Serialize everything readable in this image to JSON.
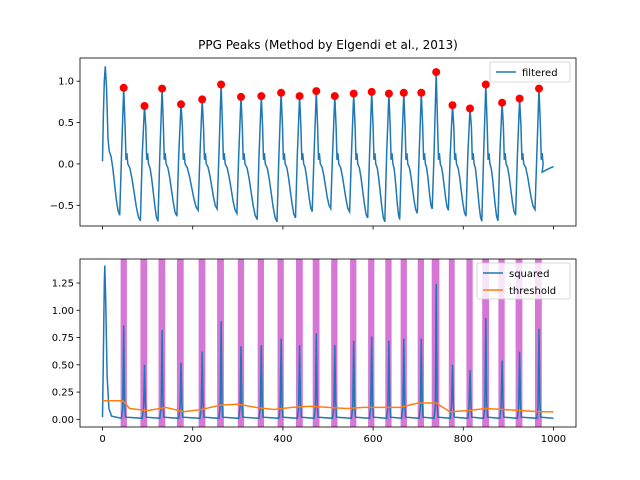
{
  "chart_data": [
    {
      "type": "line",
      "title": "PPG Peaks (Method by Elgendi et al., 2013)",
      "xlabel": "",
      "ylabel": "",
      "xlim": [
        -50,
        1050
      ],
      "ylim": [
        -0.75,
        1.28
      ],
      "yticks": [
        -0.5,
        0.0,
        0.5,
        1.0
      ],
      "ytick_labels": [
        "−0.5",
        "0.0",
        "0.5",
        "1.0"
      ],
      "legend": {
        "placement": "top-right",
        "entries": [
          "filtered"
        ]
      },
      "series": [
        {
          "name": "filtered",
          "color": "#1f77b4",
          "beats": [
            {
              "peak": 47,
              "amp": 0.92
            },
            {
              "peak": 93,
              "amp": 0.7
            },
            {
              "peak": 132,
              "amp": 0.91
            },
            {
              "peak": 174,
              "amp": 0.72
            },
            {
              "peak": 221,
              "amp": 0.78
            },
            {
              "peak": 263,
              "amp": 0.96
            },
            {
              "peak": 307,
              "amp": 0.81
            },
            {
              "peak": 352,
              "amp": 0.82
            },
            {
              "peak": 396,
              "amp": 0.86
            },
            {
              "peak": 437,
              "amp": 0.82
            },
            {
              "peak": 474,
              "amp": 0.88
            },
            {
              "peak": 515,
              "amp": 0.82
            },
            {
              "peak": 557,
              "amp": 0.85
            },
            {
              "peak": 597,
              "amp": 0.87
            },
            {
              "peak": 635,
              "amp": 0.85
            },
            {
              "peak": 668,
              "amp": 0.86
            },
            {
              "peak": 707,
              "amp": 0.86
            },
            {
              "peak": 740,
              "amp": 1.11
            },
            {
              "peak": 776,
              "amp": 0.71
            },
            {
              "peak": 815,
              "amp": 0.67
            },
            {
              "peak": 850,
              "amp": 0.96
            },
            {
              "peak": 886,
              "amp": 0.74
            },
            {
              "peak": 925,
              "amp": 0.79
            },
            {
              "peak": 968,
              "amp": 0.91
            }
          ]
        }
      ],
      "peaks": {
        "color": "#ff0000"
      }
    },
    {
      "type": "line",
      "title": "",
      "xlabel": "",
      "ylabel": "",
      "xlim": [
        -50,
        1050
      ],
      "ylim": [
        -0.07,
        1.47
      ],
      "xticks": [
        0,
        200,
        400,
        600,
        800,
        1000
      ],
      "xtick_labels": [
        "0",
        "200",
        "400",
        "600",
        "800",
        "1000"
      ],
      "yticks": [
        0.0,
        0.25,
        0.5,
        0.75,
        1.0,
        1.25
      ],
      "ytick_labels": [
        "0.00",
        "0.25",
        "0.50",
        "0.75",
        "1.00",
        "1.25"
      ],
      "legend": {
        "placement": "top-right",
        "entries": [
          "squared",
          "threshold"
        ]
      },
      "series": [
        {
          "name": "squared",
          "color": "#1f77b4",
          "peaks": [
            {
              "x": 47,
              "y": 0.86
            },
            {
              "x": 93,
              "y": 0.5
            },
            {
              "x": 132,
              "y": 0.82
            },
            {
              "x": 174,
              "y": 0.52
            },
            {
              "x": 221,
              "y": 0.62
            },
            {
              "x": 263,
              "y": 0.9
            },
            {
              "x": 307,
              "y": 0.67
            },
            {
              "x": 352,
              "y": 0.68
            },
            {
              "x": 396,
              "y": 0.74
            },
            {
              "x": 437,
              "y": 0.68
            },
            {
              "x": 474,
              "y": 0.79
            },
            {
              "x": 515,
              "y": 0.68
            },
            {
              "x": 557,
              "y": 0.72
            },
            {
              "x": 597,
              "y": 0.76
            },
            {
              "x": 635,
              "y": 0.72
            },
            {
              "x": 668,
              "y": 0.74
            },
            {
              "x": 707,
              "y": 0.74
            },
            {
              "x": 740,
              "y": 1.24
            },
            {
              "x": 776,
              "y": 0.5
            },
            {
              "x": 815,
              "y": 0.45
            },
            {
              "x": 850,
              "y": 0.93
            },
            {
              "x": 886,
              "y": 0.54
            },
            {
              "x": 925,
              "y": 0.62
            },
            {
              "x": 968,
              "y": 0.83
            }
          ]
        },
        {
          "name": "threshold",
          "color": "#ff7f0e",
          "points": [
            {
              "x": 0,
              "y": 0.17
            },
            {
              "x": 45,
              "y": 0.17
            },
            {
              "x": 60,
              "y": 0.1
            },
            {
              "x": 100,
              "y": 0.08
            },
            {
              "x": 140,
              "y": 0.11
            },
            {
              "x": 180,
              "y": 0.07
            },
            {
              "x": 220,
              "y": 0.09
            },
            {
              "x": 260,
              "y": 0.13
            },
            {
              "x": 300,
              "y": 0.14
            },
            {
              "x": 340,
              "y": 0.11
            },
            {
              "x": 380,
              "y": 0.09
            },
            {
              "x": 420,
              "y": 0.11
            },
            {
              "x": 460,
              "y": 0.12
            },
            {
              "x": 500,
              "y": 0.11
            },
            {
              "x": 540,
              "y": 0.1
            },
            {
              "x": 580,
              "y": 0.11
            },
            {
              "x": 620,
              "y": 0.11
            },
            {
              "x": 660,
              "y": 0.11
            },
            {
              "x": 700,
              "y": 0.15
            },
            {
              "x": 740,
              "y": 0.15
            },
            {
              "x": 770,
              "y": 0.07
            },
            {
              "x": 810,
              "y": 0.08
            },
            {
              "x": 850,
              "y": 0.1
            },
            {
              "x": 890,
              "y": 0.09
            },
            {
              "x": 930,
              "y": 0.08
            },
            {
              "x": 970,
              "y": 0.07
            },
            {
              "x": 1000,
              "y": 0.07
            }
          ]
        }
      ],
      "peak_bands": {
        "color": "#cc55cc",
        "intervals": [
          [
            40,
            54
          ],
          [
            84,
            99
          ],
          [
            124,
            139
          ],
          [
            165,
            180
          ],
          [
            213,
            228
          ],
          [
            254,
            269
          ],
          [
            300,
            314
          ],
          [
            344,
            358
          ],
          [
            388,
            402
          ],
          [
            429,
            444
          ],
          [
            466,
            481
          ],
          [
            507,
            521
          ],
          [
            549,
            563
          ],
          [
            589,
            603
          ],
          [
            627,
            641
          ],
          [
            661,
            675
          ],
          [
            699,
            713
          ],
          [
            730,
            747
          ],
          [
            768,
            781
          ],
          [
            807,
            821
          ],
          [
            842,
            857
          ],
          [
            878,
            892
          ],
          [
            916,
            931
          ],
          [
            959,
            974
          ]
        ]
      }
    }
  ]
}
